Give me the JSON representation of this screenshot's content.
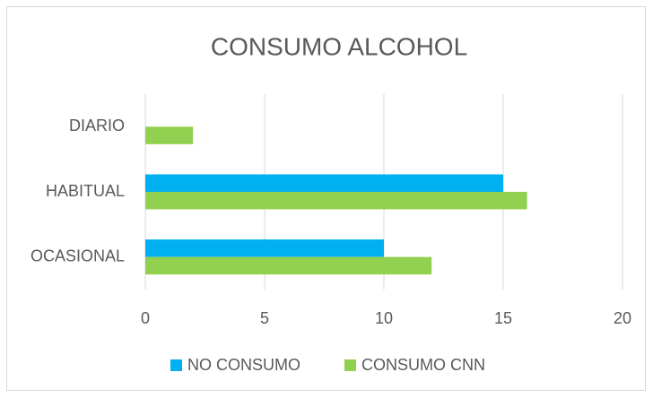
{
  "chart_data": {
    "type": "hbar",
    "title": "CONSUMO ALCOHOL",
    "categories": [
      "OCASIONAL",
      "HABITUAL",
      "DIARIO"
    ],
    "series": [
      {
        "name": "NO CONSUMO",
        "color": "#00b0f0",
        "values": [
          10,
          15,
          0
        ]
      },
      {
        "name": "CONSUMO CNN",
        "color": "#92d050",
        "values": [
          12,
          16,
          2
        ]
      }
    ],
    "xlim": [
      0,
      20
    ],
    "xticks": [
      0,
      5,
      10,
      15,
      20
    ],
    "grid": true,
    "legend": "bottom"
  }
}
